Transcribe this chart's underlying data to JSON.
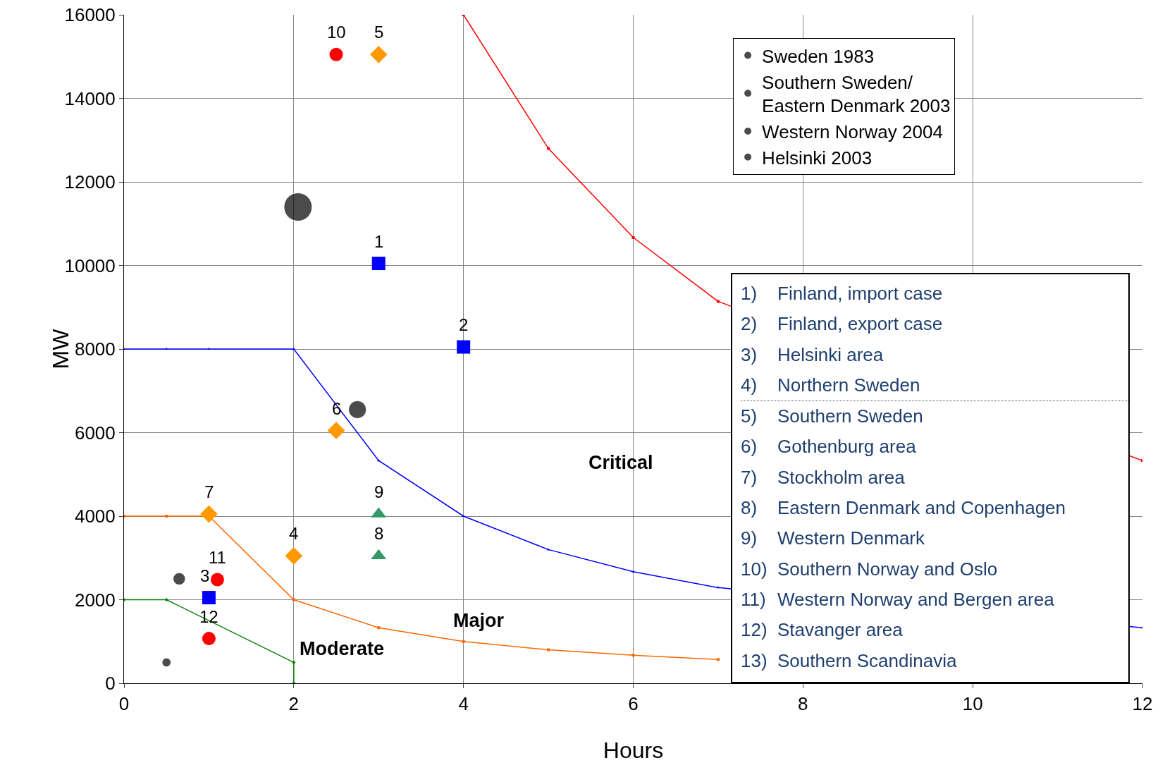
{
  "chart_data": {
    "type": "scatter",
    "xlabel": "Hours",
    "ylabel": "MW",
    "xlim": [
      0,
      12
    ],
    "xticks": [
      0,
      2,
      4,
      6,
      8,
      10,
      12
    ],
    "ylim": [
      0,
      16000
    ],
    "yticks": [
      0,
      2000,
      4000,
      6000,
      8000,
      10000,
      12000,
      14000,
      16000
    ],
    "grid": true,
    "legend": "top right",
    "series": [
      {
        "type": "line",
        "color": "#ff0000",
        "marker": "square",
        "x": [
          4,
          5,
          6,
          7,
          8,
          9,
          10,
          11,
          12
        ],
        "values": [
          16000,
          12800,
          10670,
          9140,
          null,
          null,
          null,
          null,
          5330
        ]
      },
      {
        "type": "line",
        "color": "#0000ff",
        "marker": "triangle",
        "x": [
          0,
          0.5,
          1,
          2,
          3,
          4,
          5,
          6,
          7,
          8,
          9,
          10,
          11,
          12
        ],
        "values": [
          8000,
          8000,
          8000,
          8000,
          5330,
          4000,
          3200,
          2670,
          2290,
          null,
          null,
          null,
          null,
          1330
        ]
      },
      {
        "type": "line",
        "color": "#ff6600",
        "marker": "square",
        "x": [
          0,
          0.5,
          1,
          2,
          3,
          4,
          5,
          6,
          7
        ],
        "values": [
          4000,
          4000,
          4000,
          2000,
          1330,
          1000,
          800,
          670,
          570
        ]
      },
      {
        "type": "line",
        "color": "#008000",
        "marker": "diamond",
        "x": [
          0,
          0.5,
          1,
          2,
          2
        ],
        "values": [
          2000,
          2000,
          null,
          500,
          0
        ]
      },
      {
        "type": "scatter",
        "color": "#0000ff",
        "marker": "square",
        "x": [
          3,
          4,
          1
        ],
        "values": [
          10050,
          8050,
          2050
        ]
      },
      {
        "type": "scatter",
        "color": "#ff9900",
        "marker": "diamond",
        "x": [
          3,
          2.5,
          1,
          2
        ],
        "values": [
          15050,
          6050,
          4050,
          3050
        ]
      },
      {
        "type": "scatter",
        "color": "#339966",
        "marker": "triangle",
        "x": [
          3,
          3
        ],
        "values": [
          4050,
          3050
        ]
      },
      {
        "type": "scatter",
        "color": "#ff0000",
        "marker": "circle",
        "x": [
          2.5,
          1.1,
          1
        ],
        "values": [
          15050,
          2480,
          1070
        ]
      },
      {
        "type": "bubble",
        "name": "Sweden 1983",
        "color": "#000000",
        "marker": "circle",
        "x": [
          2.05
        ],
        "values": [
          11400
        ],
        "sizes": [
          1
        ]
      },
      {
        "type": "bubble",
        "name": "Southern Sweden/\nEastern Denmark 2003",
        "color": "#000000",
        "marker": "circle",
        "x": [
          2.75
        ],
        "values": [
          6550
        ],
        "sizes": [
          0.4
        ]
      },
      {
        "type": "bubble",
        "name": "Western Norway 2004",
        "color": "#000000",
        "marker": "circle",
        "x": [
          0.65
        ],
        "values": [
          2500
        ],
        "sizes": [
          0.19
        ]
      },
      {
        "type": "bubble",
        "name": "Helsinki 2003",
        "color": "#000000",
        "marker": "circle",
        "x": [
          0.5
        ],
        "values": [
          500
        ],
        "sizes": [
          0.1
        ]
      }
    ],
    "annotations": [
      {
        "text": "1",
        "x": 3,
        "y": 10050
      },
      {
        "text": "2",
        "x": 4,
        "y": 8050
      },
      {
        "text": "3",
        "x": 0.95,
        "y": 2050
      },
      {
        "text": "4",
        "x": 2,
        "y": 3050
      },
      {
        "text": "5",
        "x": 3,
        "y": 15050
      },
      {
        "text": "6",
        "x": 2.5,
        "y": 6050
      },
      {
        "text": "7",
        "x": 1,
        "y": 4050
      },
      {
        "text": "8",
        "x": 3,
        "y": 3050
      },
      {
        "text": "9",
        "x": 3,
        "y": 4050
      },
      {
        "text": "10",
        "x": 2.5,
        "y": 15050
      },
      {
        "text": "11",
        "x": 1.1,
        "y": 2480
      },
      {
        "text": "12",
        "x": 1,
        "y": 1070
      },
      "Critical",
      "Major",
      "Moderate",
      "1)\tFinland, import case",
      "2)\tFinland, export case",
      "3)\tHelsinki area",
      "4)\tNorthern Sweden",
      "5)\tSouthern Sweden",
      "6)\tGothenburg area",
      "7)\tStockholm area",
      "8)\tEastern Denmark and Copenhagen",
      "9)\tWestern Denmark",
      "10)\tSouthern Norway and Oslo",
      "11)\tWestern Norway and Bergen area",
      "12)\tStavanger area",
      "13)\tSouthern Scandinavia"
    ]
  }
}
